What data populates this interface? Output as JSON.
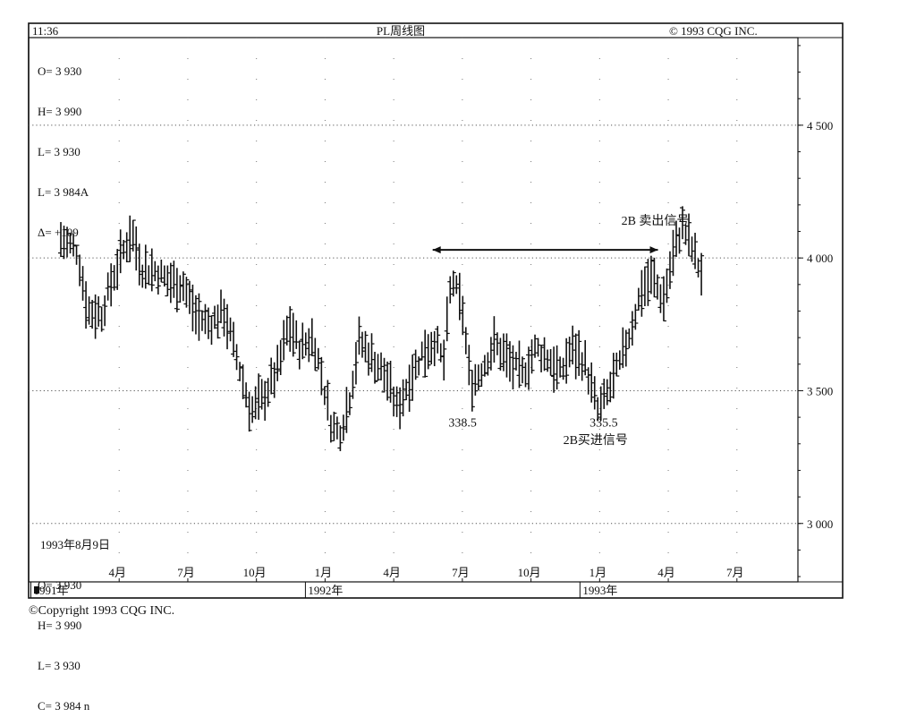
{
  "header": {
    "time": "11:36",
    "title": "PL周线图",
    "copyright": "© 1993 CQG INC."
  },
  "top_readout": {
    "open": "O= 3 930",
    "high": "H= 3 990",
    "low": "L= 3 930",
    "last": "L= 3 984A",
    "delta": "Δ= +109"
  },
  "bottom_readout": {
    "date": "1993年8月9日",
    "open": "O= 3 930",
    "high": "H= 3 990",
    "low": "L= 3 930",
    "close": "C= 3 984 n"
  },
  "footer": {
    "copyright": "Copyright 1993 CQG INC."
  },
  "chart_data": {
    "type": "bar",
    "subtype": "ohlc-weekly",
    "title": "PL周线图",
    "y_axis": {
      "ticks": [
        3000,
        3500,
        4000,
        4500
      ],
      "tick_labels": [
        "3 000",
        "3 500",
        "4 000",
        "4 500"
      ],
      "range": [
        2780,
        4830
      ],
      "position": "right",
      "grid": "dotted"
    },
    "x_axis": {
      "range": [
        0.0,
        26.3
      ],
      "month_ticks": [
        {
          "label": "4月",
          "x": 3
        },
        {
          "label": "7月",
          "x": 6
        },
        {
          "label": "10月",
          "x": 9
        },
        {
          "label": "1月",
          "x": 12
        },
        {
          "label": "4月",
          "x": 15
        },
        {
          "label": "7月",
          "x": 18
        },
        {
          "label": "10月",
          "x": 21
        },
        {
          "label": "1月",
          "x": 24
        },
        {
          "label": "4月",
          "x": 27
        },
        {
          "label": "7月",
          "x": 30
        }
      ],
      "years": [
        {
          "label": "1991年",
          "x": 0
        },
        {
          "label": "1992年",
          "x": 12
        },
        {
          "label": "1993年",
          "x": 24
        }
      ]
    },
    "anchors": [
      [
        0.0,
        4070
      ],
      [
        0.6,
        4030
      ],
      [
        1.0,
        3800
      ],
      [
        1.5,
        3790
      ],
      [
        2.0,
        3950
      ],
      [
        2.6,
        4100
      ],
      [
        3.0,
        3960
      ],
      [
        3.5,
        3950
      ],
      [
        4.0,
        3910
      ],
      [
        4.5,
        3900
      ],
      [
        5.0,
        3780
      ],
      [
        5.5,
        3750
      ],
      [
        6.0,
        3800
      ],
      [
        6.5,
        3620
      ],
      [
        7.0,
        3420
      ],
      [
        7.5,
        3480
      ],
      [
        8.0,
        3580
      ],
      [
        8.4,
        3750
      ],
      [
        8.8,
        3660
      ],
      [
        9.3,
        3700
      ],
      [
        9.6,
        3560
      ],
      [
        10.0,
        3360
      ],
      [
        10.3,
        3350
      ],
      [
        10.6,
        3450
      ],
      [
        11.0,
        3690
      ],
      [
        11.5,
        3620
      ],
      [
        12.0,
        3550
      ],
      [
        12.4,
        3430
      ],
      [
        12.8,
        3530
      ],
      [
        13.3,
        3640
      ],
      [
        13.8,
        3690
      ],
      [
        14.1,
        3600
      ],
      [
        14.4,
        3930
      ],
      [
        14.8,
        3800
      ],
      [
        15.1,
        3520
      ],
      [
        15.4,
        3560
      ],
      [
        16.0,
        3680
      ],
      [
        16.5,
        3610
      ],
      [
        17.0,
        3560
      ],
      [
        17.5,
        3660
      ],
      [
        18.0,
        3620
      ],
      [
        18.4,
        3560
      ],
      [
        18.8,
        3660
      ],
      [
        19.3,
        3610
      ],
      [
        19.8,
        3420
      ],
      [
        20.1,
        3480
      ],
      [
        20.6,
        3600
      ],
      [
        21.0,
        3730
      ],
      [
        21.4,
        3880
      ],
      [
        21.8,
        3930
      ],
      [
        22.2,
        3840
      ],
      [
        22.6,
        4030
      ],
      [
        22.9,
        4120
      ],
      [
        23.2,
        4050
      ],
      [
        23.6,
        3940
      ]
    ],
    "annotations": [
      {
        "text": "338.5",
        "x": 14.8,
        "y": 3365
      },
      {
        "text": "335.5",
        "x": 20.0,
        "y": 3365
      },
      {
        "text": "2B买进信号",
        "x": 19.7,
        "y": 3300
      },
      {
        "text": "2B 卖出信号",
        "x": 21.9,
        "y": 4125
      }
    ],
    "arrow": {
      "y": 4000,
      "x_start": 13.7,
      "x_end": 22.0
    }
  }
}
